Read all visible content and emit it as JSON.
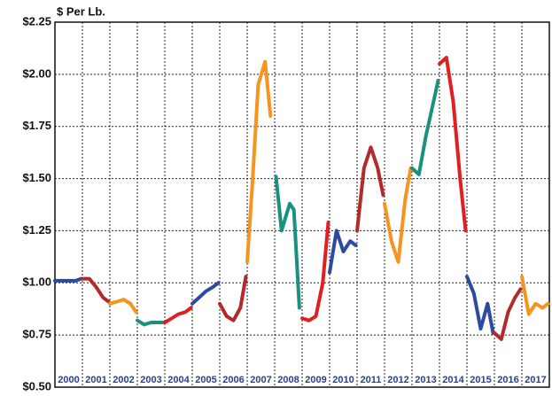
{
  "chart_data": {
    "type": "line",
    "y_label": "$ Per Lb.",
    "categories": [
      "2000",
      "2001",
      "2002",
      "2003",
      "2004",
      "2005",
      "2006",
      "2007",
      "2008",
      "2009",
      "2010",
      "2011",
      "2012",
      "2013",
      "2014",
      "2015",
      "2016",
      "2017"
    ],
    "xlim": [
      2000,
      2018
    ],
    "ylim": [
      0.5,
      2.25
    ],
    "yticks": [
      {
        "value": 0.5,
        "label": "$0.50"
      },
      {
        "value": 0.75,
        "label": "$0.75"
      },
      {
        "value": 1.0,
        "label": "$1.00"
      },
      {
        "value": 1.25,
        "label": "$1.25"
      },
      {
        "value": 1.5,
        "label": "$1.50"
      },
      {
        "value": 1.75,
        "label": "$1.75"
      },
      {
        "value": 2.0,
        "label": "$2.00"
      },
      {
        "value": 2.25,
        "label": "$2.25"
      }
    ],
    "grid": true,
    "series": [
      {
        "color": "#2b4aa0",
        "x": [
          2000.0,
          2000.25,
          2000.5,
          2000.75,
          2000.95
        ],
        "values": [
          1.01,
          1.01,
          1.01,
          1.01,
          1.02
        ]
      },
      {
        "color": "#b22a2a",
        "x": [
          2001.0,
          2001.25,
          2001.5,
          2001.75,
          2001.95
        ],
        "values": [
          1.02,
          1.02,
          0.98,
          0.93,
          0.91
        ]
      },
      {
        "color": "#f7941d",
        "x": [
          2002.0,
          2002.25,
          2002.5,
          2002.75,
          2002.95
        ],
        "values": [
          0.9,
          0.91,
          0.92,
          0.9,
          0.86
        ]
      },
      {
        "color": "#1a9080",
        "x": [
          2003.0,
          2003.25,
          2003.5,
          2003.75,
          2003.95
        ],
        "values": [
          0.82,
          0.8,
          0.81,
          0.81,
          0.81
        ]
      },
      {
        "color": "#e02020",
        "x": [
          2004.0,
          2004.25,
          2004.5,
          2004.75,
          2004.95
        ],
        "values": [
          0.81,
          0.83,
          0.85,
          0.86,
          0.88
        ]
      },
      {
        "color": "#2b4aa0",
        "x": [
          2005.0,
          2005.25,
          2005.5,
          2005.75,
          2005.95
        ],
        "values": [
          0.9,
          0.93,
          0.96,
          0.98,
          1.0
        ]
      },
      {
        "color": "#b22a2a",
        "x": [
          2006.0,
          2006.25,
          2006.5,
          2006.75,
          2006.95
        ],
        "values": [
          0.9,
          0.84,
          0.82,
          0.88,
          1.03
        ]
      },
      {
        "color": "#f7941d",
        "x": [
          2007.0,
          2007.2,
          2007.4,
          2007.65,
          2007.85
        ],
        "values": [
          1.1,
          1.5,
          1.95,
          2.06,
          1.8
        ]
      },
      {
        "color": "#1a9080",
        "x": [
          2008.05,
          2008.25,
          2008.55,
          2008.7,
          2008.9
        ],
        "values": [
          1.51,
          1.25,
          1.38,
          1.35,
          0.88
        ]
      },
      {
        "color": "#e02020",
        "x": [
          2009.0,
          2009.25,
          2009.5,
          2009.75,
          2009.95
        ],
        "values": [
          0.83,
          0.82,
          0.84,
          1.0,
          1.29
        ]
      },
      {
        "color": "#2b4aa0",
        "x": [
          2010.0,
          2010.25,
          2010.5,
          2010.75,
          2010.95
        ],
        "values": [
          1.05,
          1.25,
          1.15,
          1.2,
          1.18
        ]
      },
      {
        "color": "#b22a2a",
        "x": [
          2011.0,
          2011.25,
          2011.5,
          2011.75,
          2011.95
        ],
        "values": [
          1.25,
          1.55,
          1.65,
          1.55,
          1.42
        ]
      },
      {
        "color": "#f7941d",
        "x": [
          2012.0,
          2012.25,
          2012.5,
          2012.75,
          2012.95
        ],
        "values": [
          1.38,
          1.2,
          1.1,
          1.4,
          1.55
        ]
      },
      {
        "color": "#1a9080",
        "x": [
          2013.0,
          2013.25,
          2013.5,
          2013.75,
          2013.95
        ],
        "values": [
          1.55,
          1.52,
          1.7,
          1.85,
          1.97
        ]
      },
      {
        "color": "#e02020",
        "x": [
          2014.0,
          2014.25,
          2014.5,
          2014.75,
          2014.95
        ],
        "values": [
          2.05,
          2.08,
          1.87,
          1.5,
          1.25
        ]
      },
      {
        "color": "#2b4aa0",
        "x": [
          2015.0,
          2015.25,
          2015.5,
          2015.75,
          2015.95
        ],
        "values": [
          1.03,
          0.95,
          0.78,
          0.9,
          0.76
        ]
      },
      {
        "color": "#b22a2a",
        "x": [
          2016.0,
          2016.25,
          2016.5,
          2016.75,
          2016.95
        ],
        "values": [
          0.76,
          0.73,
          0.86,
          0.93,
          0.97
        ]
      },
      {
        "color": "#f7941d",
        "x": [
          2017.0,
          2017.25,
          2017.5,
          2017.75,
          2017.95
        ],
        "values": [
          1.03,
          0.85,
          0.9,
          0.88,
          0.9
        ]
      }
    ]
  }
}
